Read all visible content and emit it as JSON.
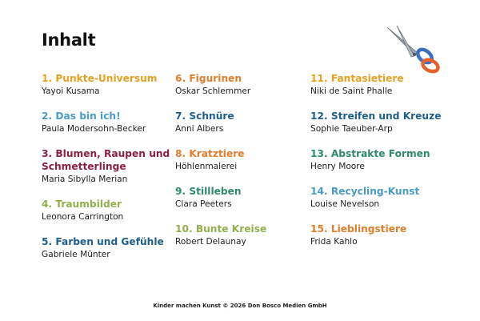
{
  "title": "Inhalt",
  "columns": [
    [
      {
        "title": "1. Punkte-Universum",
        "artist": "Yayoi Kusama",
        "color": "#E8A020"
      },
      {
        "title": "2. Das bin ich!",
        "artist": "Paula Modersohn-Becker",
        "color": "#4A9CC8"
      },
      {
        "title": "3. Blumen, Raupen und\nSchmetterlinge",
        "artist": "Maria Sibylla Merian",
        "color": "#8E1F3E"
      },
      {
        "title": "4. Traumbilder",
        "artist": "Leonora Carrington",
        "color": "#93B04C"
      },
      {
        "title": "5. Farben und Gefühle",
        "artist": "Gabriele Münter",
        "color": "#1F5F8E"
      }
    ],
    [
      {
        "title": "6. Figurinen",
        "artist": "Oskar Schlemmer",
        "color": "#E07E2C"
      },
      {
        "title": "7. Schnüre",
        "artist": "Anni Albers",
        "color": "#1F5F8E"
      },
      {
        "title": "8. Kratztiere",
        "artist": "Höhlenmalerei",
        "color": "#E07E2C"
      },
      {
        "title": "9. Stillleben",
        "artist": "Clara Peeters",
        "color": "#2E8A6E"
      },
      {
        "title": "10. Bunte Kreise",
        "artist": "Robert Delaunay",
        "color": "#93B04C"
      }
    ],
    [
      {
        "title": "11. Fantasietiere",
        "artist": "Niki de Saint Phalle",
        "color": "#E8A020"
      },
      {
        "title": "12. Streifen und Kreuze",
        "artist": "Sophie Taeuber-Arp",
        "color": "#1F5F8E"
      },
      {
        "title": "13. Abstrakte Formen",
        "artist": "Henry Moore",
        "color": "#2E8A6E"
      },
      {
        "title": "14. Recycling-Kunst",
        "artist": "Louise Nevelson",
        "color": "#4A9CC8"
      },
      {
        "title": "15. Lieblingstiere",
        "artist": "Frida Kahlo",
        "color": "#E07E2C"
      }
    ]
  ],
  "footer": "Kinder machen Kunst © 2026 Don Bosco Medien GmbH"
}
